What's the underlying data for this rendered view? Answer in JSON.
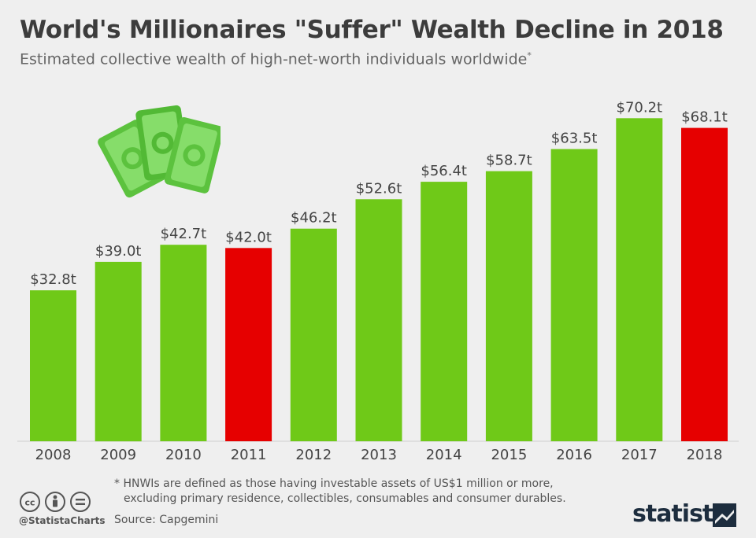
{
  "header": {
    "title": "World's Millionaires \"Suffer\" Wealth Decline in 2018",
    "subtitle": "Estimated collective wealth of high-net-worth individuals worldwide",
    "subtitle_mark": "*"
  },
  "footer": {
    "footnote_line1": "* HNWIs are defined as those having investable assets of US$1 million or more,",
    "footnote_line2": "excluding primary residence, collectibles, consumables and consumer durables.",
    "source": "Source: Capgemini",
    "handle": "@StatistaCharts",
    "brand": "statista",
    "license_icons": [
      "cc-icon",
      "by-icon",
      "nd-icon"
    ]
  },
  "chart_data": {
    "type": "bar",
    "title": "World's Millionaires \"Suffer\" Wealth Decline in 2018",
    "categories": [
      "2008",
      "2009",
      "2010",
      "2011",
      "2012",
      "2013",
      "2014",
      "2015",
      "2016",
      "2017",
      "2018"
    ],
    "values": [
      32.8,
      39.0,
      42.7,
      42.0,
      46.2,
      52.6,
      56.4,
      58.7,
      63.5,
      70.2,
      68.1
    ],
    "labels": [
      "$32.8t",
      "$39.0t",
      "$42.7t",
      "$42.0t",
      "$46.2t",
      "$52.6t",
      "$56.4t",
      "$58.7t",
      "$63.5t",
      "$70.2t",
      "$68.1t"
    ],
    "highlight": [
      false,
      false,
      false,
      true,
      false,
      false,
      false,
      false,
      false,
      false,
      true
    ],
    "colors": {
      "normal": "#6fc918",
      "highlight": "#e60000"
    },
    "ylim": [
      0,
      80
    ],
    "grid": false,
    "legend": "none"
  }
}
